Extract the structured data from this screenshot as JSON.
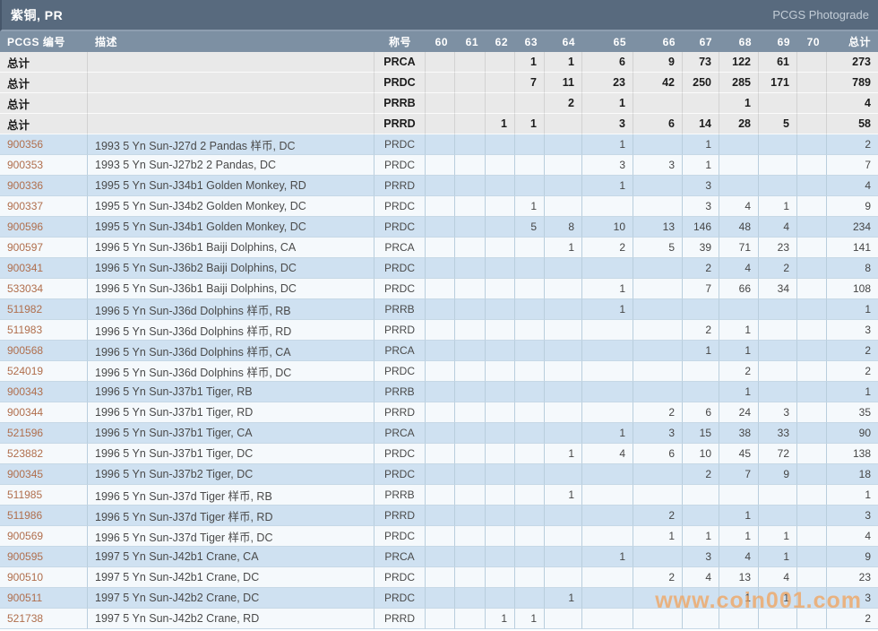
{
  "titlebar": {
    "title": "紫铜, PR",
    "right": "PCGS Photograde"
  },
  "table": {
    "col_pcgs": "PCGS 编号",
    "col_desc": "描述",
    "col_designation": "称号",
    "grade_columns": [
      "60",
      "61",
      "62",
      "63",
      "64",
      "65",
      "66",
      "67",
      "68",
      "69",
      "70"
    ],
    "col_total": "总计",
    "summary_label": "总计",
    "summary_rows": [
      {
        "designation": "PRCA",
        "grades": {
          "63": 1,
          "64": 1,
          "65": 6,
          "66": 9,
          "67": 73,
          "68": 122,
          "69": 61
        },
        "total": 273
      },
      {
        "designation": "PRDC",
        "grades": {
          "63": 7,
          "64": 11,
          "65": 23,
          "66": 42,
          "67": 250,
          "68": 285,
          "69": 171
        },
        "total": 789
      },
      {
        "designation": "PRRB",
        "grades": {
          "64": 2,
          "65": 1,
          "68": 1
        },
        "total": 4
      },
      {
        "designation": "PRRD",
        "grades": {
          "62": 1,
          "63": 1,
          "65": 3,
          "66": 6,
          "67": 14,
          "68": 28,
          "69": 5
        },
        "total": 58
      }
    ],
    "rows": [
      {
        "pcgs": "900356",
        "desc": "1993 5 Yn Sun-J27d 2 Pandas 样币, DC",
        "designation": "PRDC",
        "grades": {
          "65": 1,
          "67": 1
        },
        "total": 2
      },
      {
        "pcgs": "900353",
        "desc": "1993 5 Yn Sun-J27b2 2 Pandas, DC",
        "designation": "PRDC",
        "grades": {
          "65": 3,
          "66": 3,
          "67": 1
        },
        "total": 7
      },
      {
        "pcgs": "900336",
        "desc": "1995 5 Yn Sun-J34b1 Golden Monkey, RD",
        "designation": "PRRD",
        "grades": {
          "65": 1,
          "67": 3
        },
        "total": 4
      },
      {
        "pcgs": "900337",
        "desc": "1995 5 Yn Sun-J34b2 Golden Monkey, DC",
        "designation": "PRDC",
        "grades": {
          "63": 1,
          "67": 3,
          "68": 4,
          "69": 1
        },
        "total": 9
      },
      {
        "pcgs": "900596",
        "desc": "1995 5 Yn Sun-J34b1 Golden Monkey, DC",
        "designation": "PRDC",
        "grades": {
          "63": 5,
          "64": 8,
          "65": 10,
          "66": 13,
          "67": 146,
          "68": 48,
          "69": 4
        },
        "total": 234
      },
      {
        "pcgs": "900597",
        "desc": "1996 5 Yn Sun-J36b1 Baiji Dolphins, CA",
        "designation": "PRCA",
        "grades": {
          "64": 1,
          "65": 2,
          "66": 5,
          "67": 39,
          "68": 71,
          "69": 23
        },
        "total": 141
      },
      {
        "pcgs": "900341",
        "desc": "1996 5 Yn Sun-J36b2 Baiji Dolphins, DC",
        "designation": "PRDC",
        "grades": {
          "67": 2,
          "68": 4,
          "69": 2
        },
        "total": 8
      },
      {
        "pcgs": "533034",
        "desc": "1996 5 Yn Sun-J36b1 Baiji Dolphins, DC",
        "designation": "PRDC",
        "grades": {
          "65": 1,
          "67": 7,
          "68": 66,
          "69": 34
        },
        "total": 108
      },
      {
        "pcgs": "511982",
        "desc": "1996 5 Yn Sun-J36d Dolphins 样币, RB",
        "designation": "PRRB",
        "grades": {
          "65": 1
        },
        "total": 1
      },
      {
        "pcgs": "511983",
        "desc": "1996 5 Yn Sun-J36d Dolphins 样币, RD",
        "designation": "PRRD",
        "grades": {
          "67": 2,
          "68": 1
        },
        "total": 3
      },
      {
        "pcgs": "900568",
        "desc": "1996 5 Yn Sun-J36d Dolphins 样币, CA",
        "designation": "PRCA",
        "grades": {
          "67": 1,
          "68": 1
        },
        "total": 2
      },
      {
        "pcgs": "524019",
        "desc": "1996 5 Yn Sun-J36d Dolphins 样币, DC",
        "designation": "PRDC",
        "grades": {
          "68": 2
        },
        "total": 2
      },
      {
        "pcgs": "900343",
        "desc": "1996 5 Yn Sun-J37b1 Tiger, RB",
        "designation": "PRRB",
        "grades": {
          "68": 1
        },
        "total": 1
      },
      {
        "pcgs": "900344",
        "desc": "1996 5 Yn Sun-J37b1 Tiger, RD",
        "designation": "PRRD",
        "grades": {
          "66": 2,
          "67": 6,
          "68": 24,
          "69": 3
        },
        "total": 35
      },
      {
        "pcgs": "521596",
        "desc": "1996 5 Yn Sun-J37b1 Tiger, CA",
        "designation": "PRCA",
        "grades": {
          "65": 1,
          "66": 3,
          "67": 15,
          "68": 38,
          "69": 33
        },
        "total": 90
      },
      {
        "pcgs": "523882",
        "desc": "1996 5 Yn Sun-J37b1 Tiger, DC",
        "designation": "PRDC",
        "grades": {
          "64": 1,
          "65": 4,
          "66": 6,
          "67": 10,
          "68": 45,
          "69": 72
        },
        "total": 138
      },
      {
        "pcgs": "900345",
        "desc": "1996 5 Yn Sun-J37b2 Tiger, DC",
        "designation": "PRDC",
        "grades": {
          "67": 2,
          "68": 7,
          "69": 9
        },
        "total": 18
      },
      {
        "pcgs": "511985",
        "desc": "1996 5 Yn Sun-J37d Tiger 样币, RB",
        "designation": "PRRB",
        "grades": {
          "64": 1
        },
        "total": 1
      },
      {
        "pcgs": "511986",
        "desc": "1996 5 Yn Sun-J37d Tiger 样币, RD",
        "designation": "PRRD",
        "grades": {
          "66": 2,
          "68": 1
        },
        "total": 3
      },
      {
        "pcgs": "900569",
        "desc": "1996 5 Yn Sun-J37d Tiger 样币, DC",
        "designation": "PRDC",
        "grades": {
          "66": 1,
          "67": 1,
          "68": 1,
          "69": 1
        },
        "total": 4
      },
      {
        "pcgs": "900595",
        "desc": "1997 5 Yn Sun-J42b1 Crane, CA",
        "designation": "PRCA",
        "grades": {
          "65": 1,
          "67": 3,
          "68": 4,
          "69": 1
        },
        "total": 9
      },
      {
        "pcgs": "900510",
        "desc": "1997 5 Yn Sun-J42b1 Crane, DC",
        "designation": "PRDC",
        "grades": {
          "66": 2,
          "67": 4,
          "68": 13,
          "69": 4
        },
        "total": 23
      },
      {
        "pcgs": "900511",
        "desc": "1997 5 Yn Sun-J42b2 Crane, DC",
        "designation": "PRDC",
        "grades": {
          "64": 1,
          "68": 1,
          "69": 1
        },
        "total": 3
      },
      {
        "pcgs": "521738",
        "desc": "1997 5 Yn Sun-J42b2 Crane, RD",
        "designation": "PRRD",
        "grades": {
          "62": 1,
          "63": 1
        },
        "total": 2
      }
    ]
  },
  "watermark": {
    "text": "www.coin001.com"
  },
  "colors": {
    "titlebar_bg": "#586a7e",
    "header_bg": "#7d90a3",
    "stripe_blue": "#cfe1f1",
    "stripe_white": "#f5f9fc",
    "summary_bg": "#e9e9e9",
    "link": "#b06e4c",
    "watermark_color": "rgba(243,158,80,0.7)"
  }
}
